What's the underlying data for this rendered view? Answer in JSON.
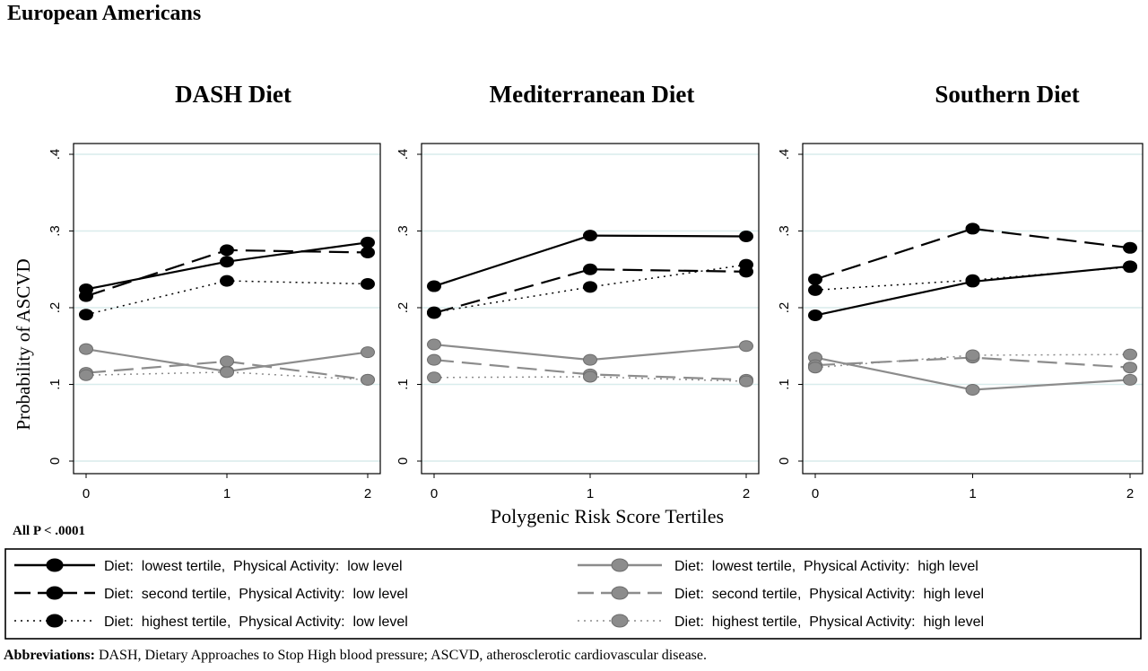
{
  "figure_title": "European Americans",
  "shared_xlabel": "Polygenic Risk Score Tertiles",
  "shared_ylabel": "Probability of ASCVD",
  "note": "All P < .0001",
  "abbreviations": {
    "label": "Abbreviations:",
    "text": "DASH, Dietary Approaches to Stop High blood pressure; ASCVD, atherosclerotic cardiovascular disease."
  },
  "legend": [
    {
      "label": "Diet:  lowest tertile,  Physical Activity:  low level",
      "style": "solid",
      "marker": "#000000"
    },
    {
      "label": "Diet:  second tertile,  Physical Activity:  low level",
      "style": "dash",
      "marker": "#000000"
    },
    {
      "label": "Diet:  highest tertile,  Physical Activity:  low level",
      "style": "dot",
      "marker": "#000000"
    },
    {
      "label": "Diet:  lowest tertile,  Physical Activity:  high level",
      "style": "solid",
      "marker": "#8c8c8c"
    },
    {
      "label": "Diet:  second tertile,  Physical Activity:  high level",
      "style": "dash",
      "marker": "#8c8c8c"
    },
    {
      "label": "Diet:  highest tertile,  Physical Activity:  high level",
      "style": "dot",
      "marker": "#8c8c8c"
    }
  ],
  "colors": {
    "low_activity": "#000000",
    "high_activity": "#8c8c8c",
    "grid": "#d9ecec"
  },
  "chart_data": [
    {
      "type": "line",
      "title": "DASH Diet",
      "x": [
        0,
        1,
        2
      ],
      "xticks": [
        "0",
        "1",
        "2"
      ],
      "yticks": [
        "0",
        ".1",
        ".2",
        ".3",
        ".4"
      ],
      "ylim": [
        0,
        0.4
      ],
      "series": [
        {
          "name": "Diet:  lowest tertile,  Physical Activity:  low level",
          "values": [
            0.224,
            0.26,
            0.285
          ]
        },
        {
          "name": "Diet:  second tertile,  Physical Activity:  low level",
          "values": [
            0.215,
            0.275,
            0.272
          ]
        },
        {
          "name": "Diet:  highest tertile,  Physical Activity:  low level",
          "values": [
            0.191,
            0.235,
            0.231
          ]
        },
        {
          "name": "Diet:  lowest tertile,  Physical Activity:  high level",
          "values": [
            0.146,
            0.117,
            0.142
          ]
        },
        {
          "name": "Diet:  second tertile,  Physical Activity:  high level",
          "values": [
            0.115,
            0.13,
            0.106
          ]
        },
        {
          "name": "Diet:  highest tertile,  Physical Activity:  high level",
          "values": [
            0.112,
            0.116,
            0.106
          ]
        }
      ]
    },
    {
      "type": "line",
      "title": "Mediterranean Diet",
      "x": [
        0,
        1,
        2
      ],
      "xticks": [
        "0",
        "1",
        "2"
      ],
      "yticks": [
        "0",
        ".1",
        ".2",
        ".3",
        ".4"
      ],
      "ylim": [
        0,
        0.4
      ],
      "series": [
        {
          "name": "Diet:  lowest tertile,  Physical Activity:  low level",
          "values": [
            0.228,
            0.294,
            0.293
          ]
        },
        {
          "name": "Diet:  second tertile,  Physical Activity:  low level",
          "values": [
            0.193,
            0.25,
            0.247
          ]
        },
        {
          "name": "Diet:  highest tertile,  Physical Activity:  low level",
          "values": [
            0.194,
            0.227,
            0.256
          ]
        },
        {
          "name": "Diet:  lowest tertile,  Physical Activity:  high level",
          "values": [
            0.152,
            0.132,
            0.15
          ]
        },
        {
          "name": "Diet:  second tertile,  Physical Activity:  high level",
          "values": [
            0.132,
            0.113,
            0.106
          ]
        },
        {
          "name": "Diet:  highest tertile,  Physical Activity:  high level",
          "values": [
            0.109,
            0.11,
            0.104
          ]
        }
      ]
    },
    {
      "type": "line",
      "title": "Southern Diet",
      "x": [
        0,
        1,
        2
      ],
      "xticks": [
        "0",
        "1",
        "2"
      ],
      "yticks": [
        "0",
        ".1",
        ".2",
        ".3",
        ".4"
      ],
      "ylim": [
        0,
        0.4
      ],
      "series": [
        {
          "name": "Diet:  lowest tertile,  Physical Activity:  low level",
          "values": [
            0.19,
            0.234,
            0.254
          ]
        },
        {
          "name": "Diet:  second tertile,  Physical Activity:  low level",
          "values": [
            0.237,
            0.303,
            0.278
          ]
        },
        {
          "name": "Diet:  highest tertile,  Physical Activity:  low level",
          "values": [
            0.223,
            0.236,
            0.253
          ]
        },
        {
          "name": "Diet:  lowest tertile,  Physical Activity:  high level",
          "values": [
            0.135,
            0.093,
            0.106
          ]
        },
        {
          "name": "Diet:  second tertile,  Physical Activity:  high level",
          "values": [
            0.125,
            0.135,
            0.122
          ]
        },
        {
          "name": "Diet:  highest tertile,  Physical Activity:  high level",
          "values": [
            0.122,
            0.138,
            0.139
          ]
        }
      ]
    }
  ]
}
